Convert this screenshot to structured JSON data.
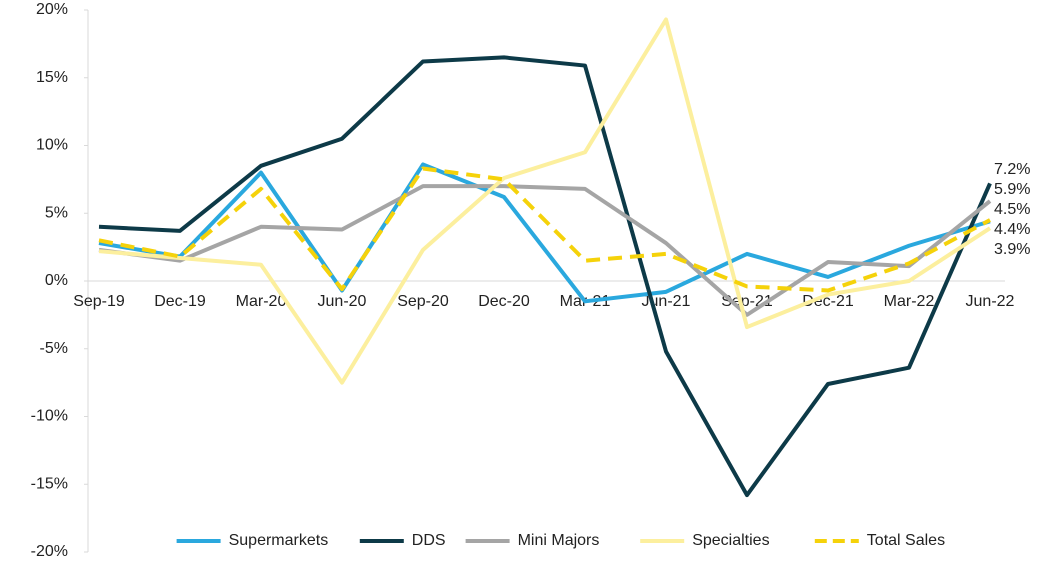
{
  "chart_data": {
    "type": "line",
    "categories": [
      "Sep-19",
      "Dec-19",
      "Mar-20",
      "Jun-20",
      "Sep-20",
      "Dec-20",
      "Mar-21",
      "Jun-21",
      "Sep-21",
      "Dec-21",
      "Mar-22",
      "Jun-22"
    ],
    "series": [
      {
        "name": "Supermarkets",
        "color": "#2aa8de",
        "style": "solid",
        "values": [
          2.8,
          1.8,
          8.0,
          -0.7,
          8.6,
          6.2,
          -1.5,
          -0.8,
          2.0,
          0.3,
          2.6,
          4.4
        ],
        "value_labels": [
          null,
          null,
          null,
          null,
          null,
          null,
          null,
          null,
          null,
          null,
          null,
          "4.4%"
        ]
      },
      {
        "name": "DDS",
        "color": "#0d3a48",
        "style": "solid",
        "values": [
          4.0,
          3.7,
          8.5,
          10.5,
          16.2,
          16.5,
          15.9,
          -5.2,
          -15.8,
          -7.6,
          -6.4,
          7.2
        ],
        "value_labels": [
          null,
          null,
          null,
          null,
          null,
          null,
          null,
          null,
          null,
          null,
          null,
          "7.2%"
        ]
      },
      {
        "name": "Mini Majors",
        "color": "#a5a5a5",
        "style": "solid",
        "values": [
          2.3,
          1.5,
          4.0,
          3.8,
          7.0,
          7.0,
          6.8,
          2.8,
          -2.5,
          1.4,
          1.1,
          5.9
        ],
        "value_labels": [
          null,
          null,
          null,
          null,
          null,
          null,
          null,
          null,
          null,
          null,
          null,
          "5.9%"
        ]
      },
      {
        "name": "Specialties",
        "color": "#fcef9e",
        "style": "solid",
        "values": [
          2.2,
          1.7,
          1.2,
          -7.5,
          2.3,
          7.6,
          9.5,
          19.3,
          -3.4,
          -1.0,
          0.0,
          3.9
        ],
        "value_labels": [
          null,
          null,
          null,
          null,
          null,
          null,
          null,
          null,
          null,
          null,
          null,
          "3.9%"
        ]
      },
      {
        "name": "Total Sales",
        "color": "#f5d20a",
        "style": "dashed",
        "values": [
          3.0,
          1.8,
          6.8,
          -0.6,
          8.3,
          7.5,
          1.5,
          2.0,
          -0.4,
          -0.7,
          1.3,
          4.5
        ],
        "value_labels": [
          null,
          null,
          null,
          null,
          null,
          null,
          null,
          null,
          null,
          null,
          null,
          "4.5%"
        ]
      }
    ],
    "ylim": [
      -20,
      20
    ],
    "yticks": [
      {
        "value": -20,
        "label": "-20%"
      },
      {
        "value": -15,
        "label": "-15%"
      },
      {
        "value": -10,
        "label": "-10%"
      },
      {
        "value": -5,
        "label": "-5%"
      },
      {
        "value": 0,
        "label": "0%"
      },
      {
        "value": 5,
        "label": "5%"
      },
      {
        "value": 10,
        "label": "10%"
      },
      {
        "value": 15,
        "label": "15%"
      },
      {
        "value": 20,
        "label": "20%"
      }
    ],
    "legend": "bottom"
  }
}
